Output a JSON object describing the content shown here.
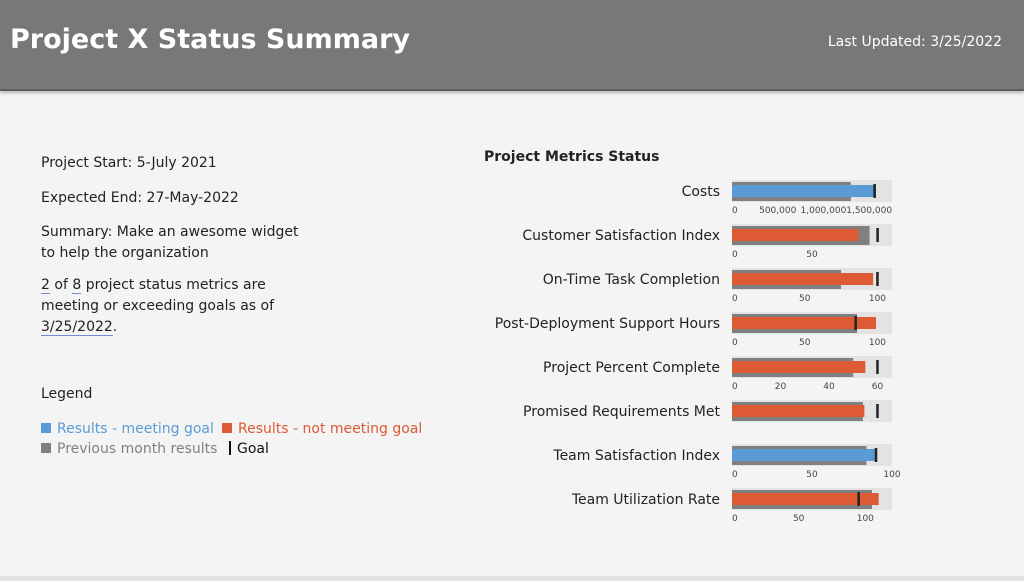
{
  "header": {
    "title": "Project X Status Summary",
    "last_updated": "Last Updated: 3/25/2022"
  },
  "info": {
    "start": "Project Start: 5-July 2021",
    "end": "Expected End: 27-May-2022",
    "summary": "Summary: Make an awesome widget to help the organization",
    "status": {
      "meeting": "2",
      "part1": "of",
      "total": "8",
      "part2": "project status metrics are meeting or exceeding goals as of",
      "date": "3/25/2022",
      "end": "."
    }
  },
  "legend": {
    "title": "Legend",
    "items": [
      {
        "label": "Results - meeting goal",
        "color": "#5b9bd5"
      },
      {
        "label": "Results - not meeting goal",
        "color": "#dd5a35"
      },
      {
        "label": "Previous month results",
        "color": "#808080"
      },
      {
        "label": "Goal",
        "color": "#111111"
      }
    ]
  },
  "metrics": {
    "title": "Project Metrics Status",
    "background": "#e3e3e3",
    "previous_color": "#808080",
    "goal_color": "#222222",
    "items": [
      {
        "name": "Costs",
        "color": "#5b9bd5",
        "result": 1575000,
        "previous": 1300000,
        "goal": 1560000,
        "xlim": [
          0,
          1750000
        ],
        "xticks": [
          0,
          {
            "value": 500000,
            "label": "500,000"
          },
          {
            "value": 1000000,
            "label": "1,000,000"
          },
          {
            "value": 1500000,
            "label": "1,500,000"
          }
        ]
      },
      {
        "name": "Customer Satisfaction Index",
        "color": "#dd5a35",
        "result": 79,
        "previous": 86,
        "goal": 91,
        "xlim": [
          0,
          100
        ],
        "xticks": [
          0,
          50
        ]
      },
      {
        "name": "On-Time Task Completion",
        "color": "#dd5a35",
        "result": 97,
        "previous": 75,
        "goal": 100,
        "xlim": [
          0,
          110
        ],
        "xticks": [
          0,
          50,
          100
        ]
      },
      {
        "name": "Post-Deployment Support Hours",
        "color": "#dd5a35",
        "result": 99,
        "previous": 86,
        "goal": 85,
        "xlim": [
          0,
          110
        ],
        "xticks": [
          0,
          50,
          100
        ]
      },
      {
        "name": "Project Percent Complete",
        "color": "#dd5a35",
        "result": 55,
        "previous": 50,
        "goal": 60,
        "xlim": [
          0,
          66
        ],
        "xticks": [
          0,
          20,
          40,
          60
        ]
      },
      {
        "name": "Promised Requirements Met",
        "color": "#dd5a35",
        "result": 91,
        "previous": 90,
        "goal": 100,
        "xlim": [
          0,
          110
        ],
        "xticks": []
      },
      {
        "name": "Team Satisfaction Index",
        "color": "#5b9bd5",
        "result": 90,
        "previous": 84,
        "goal": 90,
        "xlim": [
          0,
          100
        ],
        "xticks": [
          0,
          50,
          100
        ]
      },
      {
        "name": "Team Utilization Rate",
        "color": "#dd5a35",
        "result": 110,
        "previous": 105,
        "goal": 95,
        "xlim": [
          0,
          120
        ],
        "xticks": [
          0,
          50,
          100
        ]
      }
    ]
  }
}
